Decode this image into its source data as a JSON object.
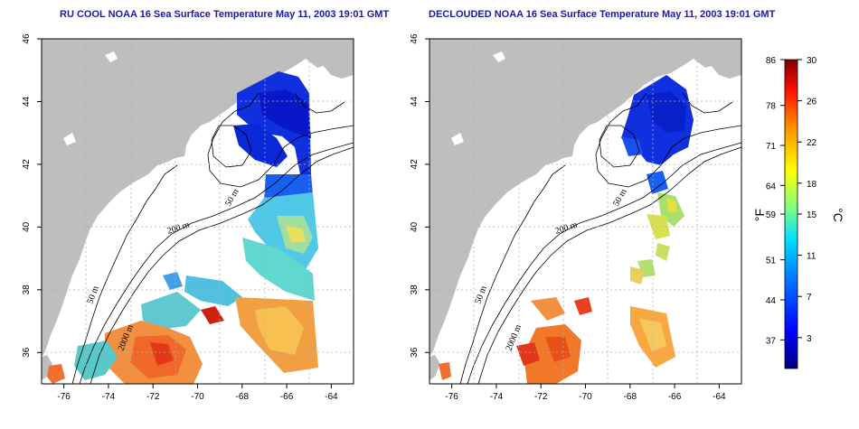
{
  "maps": [
    {
      "title": "RU COOL NOAA 16 Sea Surface Temperature May 11, 2003 19:01 GMT",
      "variant": "raw"
    },
    {
      "title": "DECLOUDED NOAA 16 Sea Surface Temperature May 11, 2003 19:01 GMT",
      "variant": "declouded"
    }
  ],
  "axes": {
    "lon_ticks": [
      "-76",
      "-74",
      "-72",
      "-70",
      "-68",
      "-66",
      "-64"
    ],
    "lat_ticks": [
      "36",
      "38",
      "40",
      "42",
      "44",
      "46"
    ],
    "lon_range": [
      -77,
      -63
    ],
    "lat_range": [
      35,
      46
    ],
    "grid": "dotted"
  },
  "contours": [
    "50 m",
    "200 m",
    "2000 m"
  ],
  "colorbar": {
    "unit_left": "°F",
    "unit_right": "°C",
    "fahrenheit_labels": [
      "86",
      "78",
      "71",
      "64",
      "59",
      "51",
      "44",
      "37"
    ],
    "celsius_labels": [
      "30",
      "26",
      "22",
      "18",
      "15",
      "11",
      "7",
      "3"
    ],
    "range_c": [
      0,
      30
    ],
    "colors": [
      "#00007f",
      "#0000ff",
      "#007fff",
      "#00ffff",
      "#7fff7f",
      "#ffff00",
      "#ff7f00",
      "#ff0000",
      "#7f0000"
    ]
  }
}
